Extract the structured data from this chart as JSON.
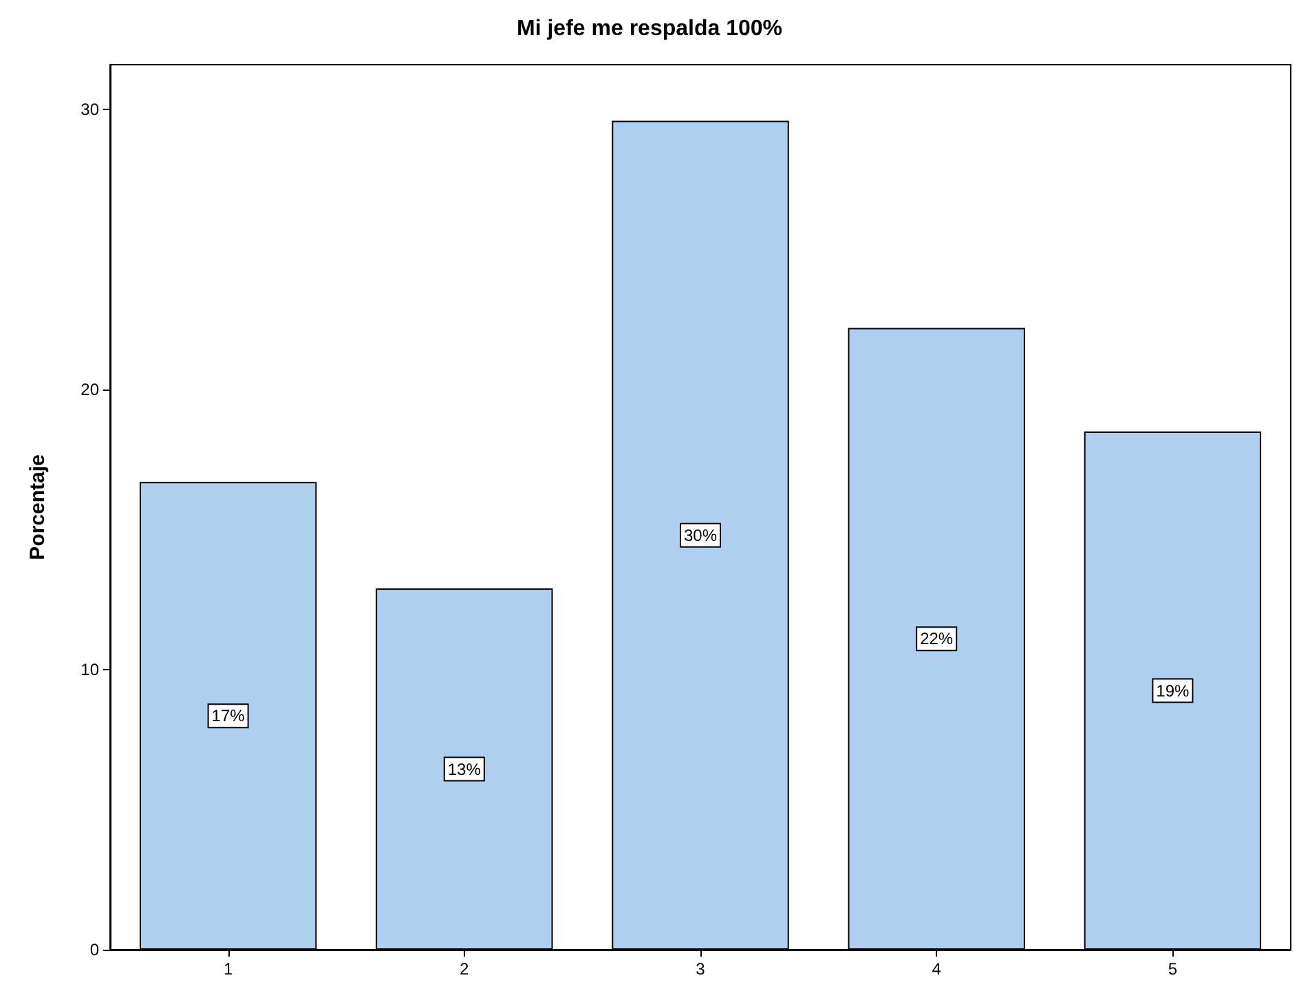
{
  "chart_data": {
    "type": "bar",
    "title": "Mi jefe me respalda 100%",
    "ylabel": "Porcentaje",
    "categories": [
      "1",
      "2",
      "3",
      "4",
      "5"
    ],
    "values": [
      16.7,
      12.9,
      29.6,
      22.2,
      18.5
    ],
    "value_labels": [
      "17%",
      "13%",
      "30%",
      "22%",
      "19%"
    ],
    "color": "#aed0ee",
    "ylim": [
      0,
      31.6
    ],
    "yticks": [
      0,
      10,
      20,
      30
    ],
    "grid": false
  }
}
